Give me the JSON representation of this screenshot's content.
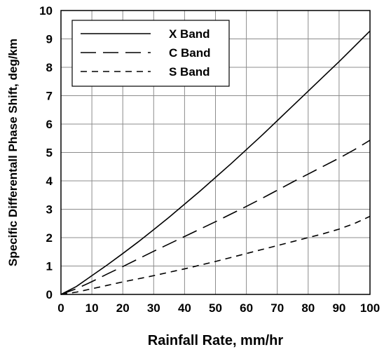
{
  "chart_data": {
    "type": "line",
    "xlabel": "Rainfall Rate, mm/hr",
    "ylabel": "Specific Differentall Phase Shift, deg/km",
    "xlim": [
      0,
      100
    ],
    "ylim": [
      0,
      10
    ],
    "x_ticks": [
      0,
      10,
      20,
      30,
      40,
      50,
      60,
      70,
      80,
      90,
      100
    ],
    "y_ticks": [
      0,
      1,
      2,
      3,
      4,
      5,
      6,
      7,
      8,
      9,
      10
    ],
    "grid": true,
    "legend_position": "top-left",
    "x": [
      0,
      5,
      10,
      15,
      20,
      25,
      30,
      35,
      40,
      45,
      50,
      55,
      60,
      65,
      70,
      75,
      80,
      85,
      90,
      95,
      100
    ],
    "series": [
      {
        "name": "X Band",
        "line_style": "solid",
        "color": "#000000",
        "values": [
          0,
          0.28,
          0.66,
          1.04,
          1.44,
          1.85,
          2.28,
          2.72,
          3.18,
          3.64,
          4.12,
          4.6,
          5.1,
          5.6,
          6.12,
          6.64,
          7.16,
          7.68,
          8.2,
          8.74,
          9.28
        ]
      },
      {
        "name": "C Band",
        "line_style": "long-dash",
        "color": "#000000",
        "values": [
          0,
          0.2,
          0.45,
          0.72,
          0.98,
          1.25,
          1.52,
          1.78,
          2.04,
          2.3,
          2.56,
          2.83,
          3.1,
          3.38,
          3.67,
          3.96,
          4.24,
          4.52,
          4.8,
          5.1,
          5.43
        ]
      },
      {
        "name": "S Band",
        "line_style": "short-dash",
        "color": "#000000",
        "values": [
          0,
          0.08,
          0.2,
          0.32,
          0.44,
          0.55,
          0.66,
          0.78,
          0.9,
          1.03,
          1.16,
          1.3,
          1.44,
          1.58,
          1.72,
          1.86,
          2.0,
          2.14,
          2.3,
          2.5,
          2.75
        ]
      }
    ]
  }
}
